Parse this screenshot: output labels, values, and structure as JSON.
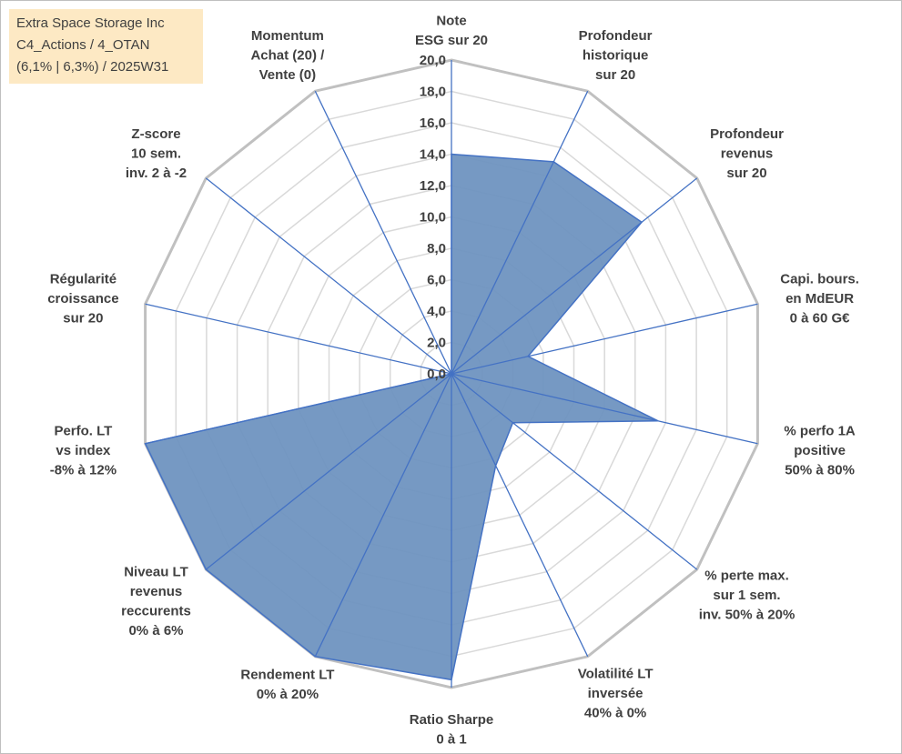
{
  "title_lines": [
    "Extra Space Storage Inc",
    "C4_Actions / 4_OTAN",
    "(6,1% | 6,3%) / 2025W31"
  ],
  "chart_data": {
    "type": "radar",
    "axis_max": 20,
    "tick_step": 2,
    "tick_labels": [
      "0,0",
      "2,0",
      "4,0",
      "6,0",
      "8,0",
      "10,0",
      "12,0",
      "14,0",
      "16,0",
      "18,0",
      "20,0"
    ],
    "axes": [
      {
        "label": [
          "Note",
          "ESG sur 20"
        ],
        "value": 14.0
      },
      {
        "label": [
          "Profondeur",
          "historique",
          "sur 20"
        ],
        "value": 15.0
      },
      {
        "label": [
          "Profondeur",
          "revenus",
          "sur 20"
        ],
        "value": 15.5
      },
      {
        "label": [
          "Capi. bours.",
          "en MdEUR",
          "0 à 60 G€"
        ],
        "value": 5.0
      },
      {
        "label": [
          "% perfo 1A",
          "positive",
          "50% à 80%"
        ],
        "value": 13.5
      },
      {
        "label": [
          "% perte max.",
          "sur 1 sem.",
          "inv. 50% à 20%"
        ],
        "value": 5.0
      },
      {
        "label": [
          "Volatilité LT",
          "inversée",
          "40% à 0%"
        ],
        "value": 6.5
      },
      {
        "label": [
          "Ratio Sharpe",
          "0 à 1"
        ],
        "value": 19.5
      },
      {
        "label": [
          "Rendement LT",
          "0% à 20%"
        ],
        "value": 20.0
      },
      {
        "label": [
          "Niveau LT",
          "revenus",
          "reccurents",
          "0% à 6%"
        ],
        "value": 20.0
      },
      {
        "label": [
          "Perfo. LT",
          "vs index",
          "-8% à 12%"
        ],
        "value": 20.0
      },
      {
        "label": [
          "Régularité",
          "croissance",
          "sur 20"
        ],
        "value": 0.0
      },
      {
        "label": [
          "Z-score",
          "10 sem.",
          "inv. 2 à -2"
        ],
        "value": 0.0
      },
      {
        "label": [
          "Momentum",
          "Achat (20) /",
          "Vente (0)"
        ],
        "value": 0.0
      }
    ],
    "colors": {
      "fill": "#6f94c0",
      "stroke": "#4472c4",
      "grid_outer": "#c0c0c0",
      "grid_inner": "#d9d9d9",
      "spoke": "#4472c4",
      "text": "#404040"
    }
  }
}
